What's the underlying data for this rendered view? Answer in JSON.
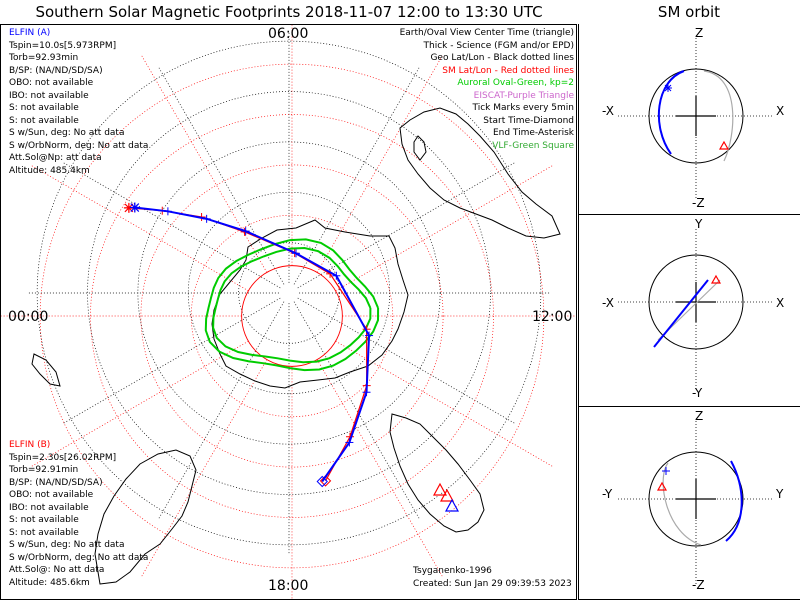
{
  "header": {
    "title": "Southern Solar Magnetic Footprints 2018-11-07 12:00 to 13:30 UTC",
    "orbit_title": "SM orbit"
  },
  "probe_a": {
    "name": "ELFIN (A)",
    "color": "#0000ff",
    "lines": [
      "Tspin=10.0s[5.973RPM]",
      "Torb=92.93min",
      "B/SP: (NA/ND/SD/SA)",
      "OBO: not available",
      "IBO: not available",
      "S: not available",
      "S: not available",
      "S w/Sun, deg: No att data",
      "S w/OrbNorm, deg: No att data",
      "Att.Sol@Np: att data",
      "Altitude: 485.4km"
    ]
  },
  "probe_b": {
    "name": "ELFIN (B)",
    "color": "#ff0000",
    "lines": [
      "Tspin=2.30s[26.02RPM]",
      "Torb=92.91min",
      "B/SP: (NA/ND/SD/SA)",
      "OBO: not available",
      "IBO: not available",
      "S: not available",
      "S: not available",
      "S w/Sun, deg: No att data",
      "S w/OrbNorm, deg: No att data",
      "Att.Sol@: No att data",
      "Altitude: 485.6km"
    ]
  },
  "legend": {
    "items": [
      {
        "text": "Earth/Oval View Center Time (triangle)",
        "color": "#000000"
      },
      {
        "text": "Thick - Science (FGM and/or EPD)",
        "color": "#000000"
      },
      {
        "text": "Geo Lat/Lon - Black dotted lines",
        "color": "#000000"
      },
      {
        "text": "SM Lat/Lon - Red dotted lines",
        "color": "#ff0000"
      },
      {
        "text": "Auroral Oval-Green, kp=2",
        "color": "#00cc00"
      },
      {
        "text": "EISCAT-Purple Triangle",
        "color": "#cc66cc"
      },
      {
        "text": "Tick Marks every 5min",
        "color": "#000000"
      },
      {
        "text": "Start Time-Diamond",
        "color": "#000000"
      },
      {
        "text": "End Time-Asterisk",
        "color": "#000000"
      },
      {
        "text": "VLF-Green Square",
        "color": "#33aa33"
      }
    ]
  },
  "map": {
    "time_labels": {
      "top": "06:00",
      "left": "00:00",
      "right": "12:00",
      "bottom": "18:00"
    },
    "credit_model": "Tsyganenko-1996",
    "credit_created": "Created: Sun Jan 29 09:39:53 2023"
  },
  "orbit_panels": [
    {
      "top": "Z",
      "bottom": "-Z",
      "left": "-X",
      "right": "X"
    },
    {
      "top": "Y",
      "bottom": "-Y",
      "left": "-X",
      "right": "X"
    },
    {
      "top": "Z",
      "bottom": "-Z",
      "left": "-Y",
      "right": "Y"
    }
  ],
  "chart_data": {
    "type": "polar footprint map",
    "projection": "southern hemisphere, magnetic local time around the rim",
    "mlt_labels": [
      "00:00",
      "06:00",
      "12:00",
      "18:00"
    ],
    "sm_latitude_circles_deg": [
      -80,
      -70,
      -60,
      -50,
      -40
    ],
    "auroral_oval_kp": 2,
    "series": [
      {
        "name": "ELFIN (A)",
        "color": "#0000ff",
        "footprint_lat_lon": [
          [
            -52,
            10
          ],
          [
            -58,
            22
          ],
          [
            -65,
            38
          ],
          [
            -72,
            62
          ],
          [
            -80,
            110
          ],
          [
            -82,
            170
          ],
          [
            -75,
            215
          ],
          [
            -68,
            228
          ],
          [
            -61,
            236
          ],
          [
            -55,
            241
          ]
        ]
      },
      {
        "name": "ELFIN (B)",
        "color": "#ff0000",
        "footprint_lat_lon": [
          [
            -52,
            11
          ],
          [
            -59,
            23
          ],
          [
            -66,
            40
          ],
          [
            -73,
            65
          ],
          [
            -81,
            115
          ],
          [
            -82,
            172
          ],
          [
            -75,
            216
          ],
          [
            -67,
            229
          ],
          [
            -60,
            237
          ],
          [
            -54,
            242
          ]
        ]
      }
    ]
  }
}
